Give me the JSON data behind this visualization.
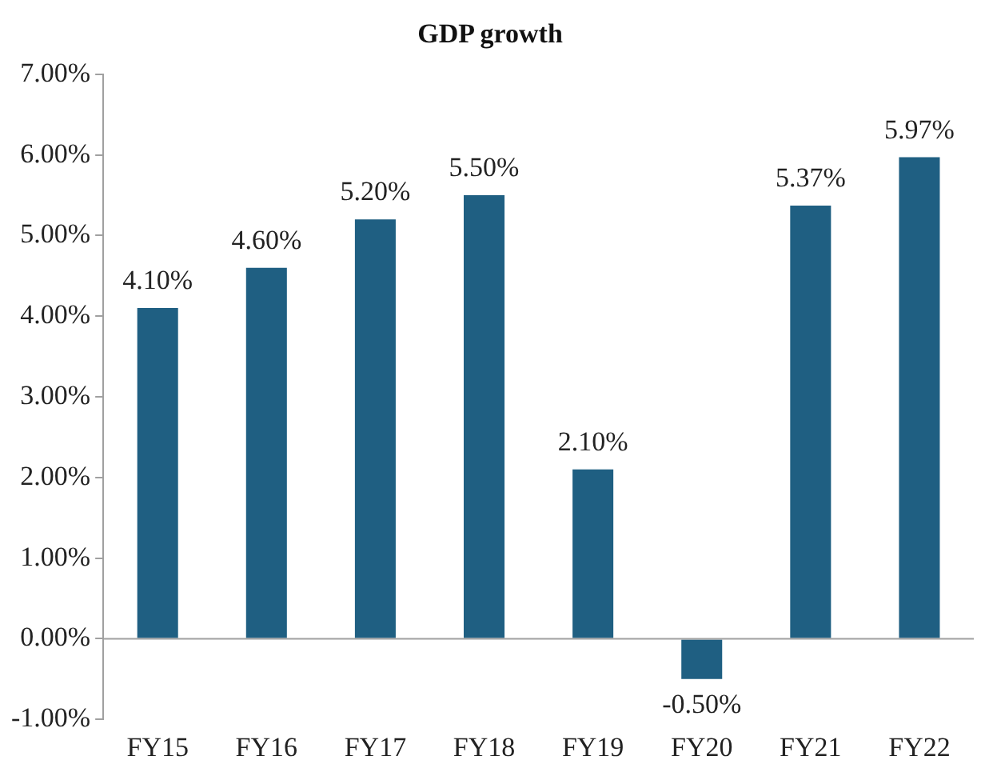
{
  "chart_data": {
    "type": "bar",
    "title": "GDP growth",
    "categories": [
      "FY15",
      "FY16",
      "FY17",
      "FY18",
      "FY19",
      "FY20",
      "FY21",
      "FY22"
    ],
    "values": [
      4.1,
      4.6,
      5.2,
      5.5,
      2.1,
      -0.5,
      5.37,
      5.97
    ],
    "value_labels": [
      "4.10%",
      "4.60%",
      "5.20%",
      "5.50%",
      "2.10%",
      "-0.50%",
      "5.37%",
      "5.97%"
    ],
    "color": "#1f5f82",
    "ylim": [
      -1,
      7
    ],
    "yticks": [
      {
        "value": -1,
        "label": "-1.00%"
      },
      {
        "value": 0,
        "label": "0.00%"
      },
      {
        "value": 1,
        "label": "1.00%"
      },
      {
        "value": 2,
        "label": "2.00%"
      },
      {
        "value": 3,
        "label": "3.00%"
      },
      {
        "value": 4,
        "label": "4.00%"
      },
      {
        "value": 5,
        "label": "5.00%"
      },
      {
        "value": 6,
        "label": "6.00%"
      },
      {
        "value": 7,
        "label": "7.00%"
      }
    ],
    "legend": false
  }
}
